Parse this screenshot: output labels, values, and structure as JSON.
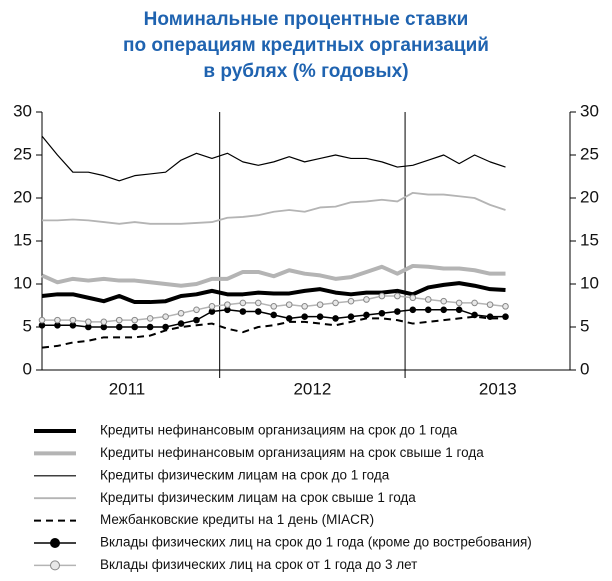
{
  "chart_data": {
    "type": "line",
    "title": [
      "Номинальные процентные ставки",
      "по операциям кредитных организаций",
      "в рублях (% годовых)"
    ],
    "categories": [
      null,
      null,
      null,
      null,
      null,
      "2011",
      null,
      null,
      null,
      null,
      null,
      null,
      null,
      null,
      null,
      null,
      null,
      "2012",
      null,
      null,
      null,
      null,
      null,
      null,
      null,
      null,
      null,
      null,
      null,
      "2013",
      null
    ],
    "ylim": [
      0,
      30
    ],
    "yticks": [
      0,
      5,
      10,
      15,
      20,
      25,
      30
    ],
    "y2lim": [
      0,
      30
    ],
    "y2ticks": [
      0,
      5,
      10,
      15,
      20,
      25,
      30
    ],
    "series": [
      {
        "name": "Кредиты нефинансовым организациям на срок до 1 года",
        "color": "#000000",
        "line_width": 4,
        "values": [
          8.6,
          8.8,
          8.8,
          8.4,
          8.0,
          8.6,
          7.9,
          7.9,
          8.0,
          8.6,
          8.8,
          9.2,
          8.8,
          8.8,
          9.0,
          8.9,
          8.9,
          9.2,
          9.4,
          9.0,
          8.8,
          9.0,
          9.0,
          9.2,
          8.8,
          9.6,
          9.9,
          10.1,
          9.8,
          9.4,
          9.3
        ]
      },
      {
        "name": "Кредиты нефинансовым организациям на срок свыше 1 года",
        "color": "#b4b4b4",
        "line_width": 4,
        "values": [
          11.0,
          10.2,
          10.6,
          10.4,
          10.6,
          10.4,
          10.4,
          10.2,
          10.0,
          9.8,
          10.0,
          10.6,
          10.6,
          11.4,
          11.4,
          10.9,
          11.6,
          11.2,
          11.0,
          10.6,
          10.8,
          11.4,
          12.0,
          11.2,
          12.1,
          12.0,
          11.8,
          11.8,
          11.6,
          11.2,
          11.2
        ]
      },
      {
        "name": "Кредиты физическим лицам на срок до 1 года",
        "color": "#000000",
        "line_width": 1.2,
        "values": [
          27.2,
          25.0,
          23.0,
          23.0,
          22.6,
          22.0,
          22.6,
          22.8,
          23.0,
          24.4,
          25.2,
          24.6,
          25.2,
          24.2,
          23.8,
          24.2,
          24.8,
          24.2,
          24.6,
          25.0,
          24.6,
          24.6,
          24.2,
          23.6,
          23.8,
          24.4,
          25.0,
          24.0,
          25.0,
          24.2,
          23.6
        ]
      },
      {
        "name": "Кредиты физическим лицам на срок свыше 1 года",
        "color": "#b4b4b4",
        "line_width": 1.8,
        "values": [
          17.4,
          17.4,
          17.5,
          17.4,
          17.2,
          17.0,
          17.2,
          17.0,
          17.0,
          17.0,
          17.1,
          17.2,
          17.7,
          17.8,
          18.0,
          18.4,
          18.6,
          18.4,
          18.9,
          19.0,
          19.5,
          19.6,
          19.8,
          19.6,
          20.6,
          20.4,
          20.4,
          20.2,
          20.0,
          19.2,
          18.6
        ]
      },
      {
        "name": "Межбанковские кредиты на 1 день (MIACR)",
        "color": "#000000",
        "line_width": 2,
        "linestyle": "dashed",
        "values": [
          2.6,
          2.8,
          3.2,
          3.4,
          3.8,
          3.8,
          3.8,
          4.0,
          4.6,
          5.0,
          5.2,
          5.4,
          4.8,
          4.4,
          5.0,
          5.2,
          5.6,
          5.6,
          5.4,
          5.2,
          5.6,
          6.0,
          6.0,
          5.8,
          5.4,
          5.6,
          5.8,
          6.0,
          6.2,
          6.0,
          6.0
        ]
      },
      {
        "name": "Вклады физических лиц на срок до 1 года (кроме до востребования)",
        "color": "#000000",
        "line_width": 1.5,
        "marker": "circle",
        "values": [
          5.2,
          5.2,
          5.2,
          5.0,
          5.0,
          5.0,
          5.0,
          5.0,
          5.0,
          5.4,
          5.8,
          6.8,
          7.0,
          6.8,
          6.8,
          6.4,
          6.0,
          6.2,
          6.2,
          6.0,
          6.2,
          6.4,
          6.6,
          6.8,
          7.0,
          7.0,
          7.0,
          7.0,
          6.4,
          6.2,
          6.2
        ]
      },
      {
        "name": "Вклады физических лиц на срок от 1 года до 3 лет",
        "color": "#b4b4b4",
        "line_width": 1.5,
        "marker": "circle",
        "values": [
          5.8,
          5.8,
          5.8,
          5.6,
          5.6,
          5.8,
          5.8,
          6.0,
          6.2,
          6.6,
          7.0,
          7.4,
          7.6,
          7.8,
          7.8,
          7.4,
          7.6,
          7.4,
          7.6,
          7.8,
          8.0,
          8.2,
          8.6,
          8.6,
          8.4,
          8.2,
          8.0,
          7.8,
          7.8,
          7.6,
          7.4
        ]
      }
    ]
  }
}
